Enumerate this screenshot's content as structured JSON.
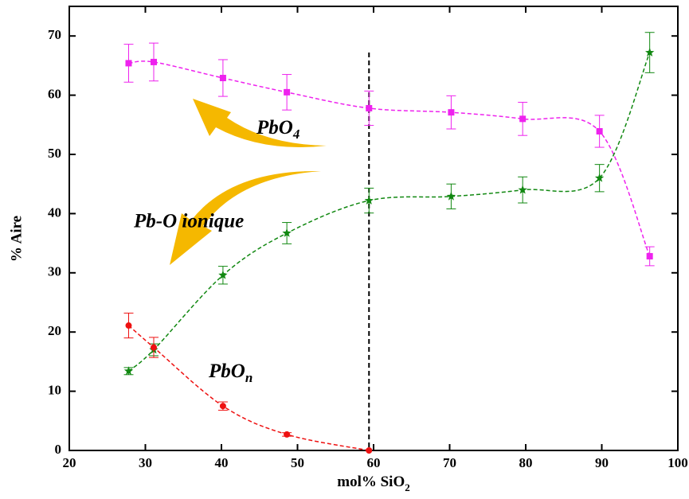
{
  "chart_data": {
    "type": "scatter",
    "xlabel": {
      "text": "mol% SiO",
      "sub": "2"
    },
    "ylabel": "% Aire",
    "xlim": [
      20,
      100
    ],
    "xticks": [
      20,
      30,
      40,
      50,
      60,
      70,
      80,
      90,
      100
    ],
    "ylim": [
      0,
      75
    ],
    "yticks": [
      0,
      10,
      20,
      30,
      40,
      50,
      60,
      70
    ],
    "vline": 59.4,
    "annotations": [
      {
        "text": "PbO",
        "sub": "4"
      },
      {
        "text": "Pb-O ionique"
      },
      {
        "text": "PbO",
        "sub": "n"
      }
    ],
    "series": [
      {
        "marker": "square",
        "color": "#ee22ee",
        "x": [
          27.8,
          31.1,
          40.2,
          48.6,
          59.4,
          70.2,
          79.6,
          89.7,
          96.3
        ],
        "values": [
          65.4,
          65.6,
          62.9,
          60.5,
          57.8,
          57.1,
          56.0,
          53.9,
          32.8
        ],
        "errors": [
          3.2,
          3.2,
          3.1,
          3.0,
          2.9,
          2.8,
          2.8,
          2.7,
          1.6
        ]
      },
      {
        "marker": "star",
        "color": "#118811",
        "x": [
          27.8,
          31.1,
          40.2,
          48.6,
          59.4,
          70.2,
          79.6,
          89.7,
          96.3
        ],
        "values": [
          13.4,
          17.0,
          29.6,
          36.7,
          42.2,
          42.9,
          44.0,
          46.0,
          67.2
        ],
        "errors": [
          0.6,
          1.0,
          1.5,
          1.8,
          2.1,
          2.1,
          2.2,
          2.3,
          3.4
        ]
      },
      {
        "marker": "circle",
        "color": "#ee1111",
        "x": [
          27.8,
          31.1,
          40.2,
          48.6,
          59.4
        ],
        "values": [
          21.1,
          17.4,
          7.5,
          2.7,
          0
        ],
        "errors": [
          2.1,
          1.7,
          0.7,
          0.3,
          0
        ]
      }
    ]
  }
}
